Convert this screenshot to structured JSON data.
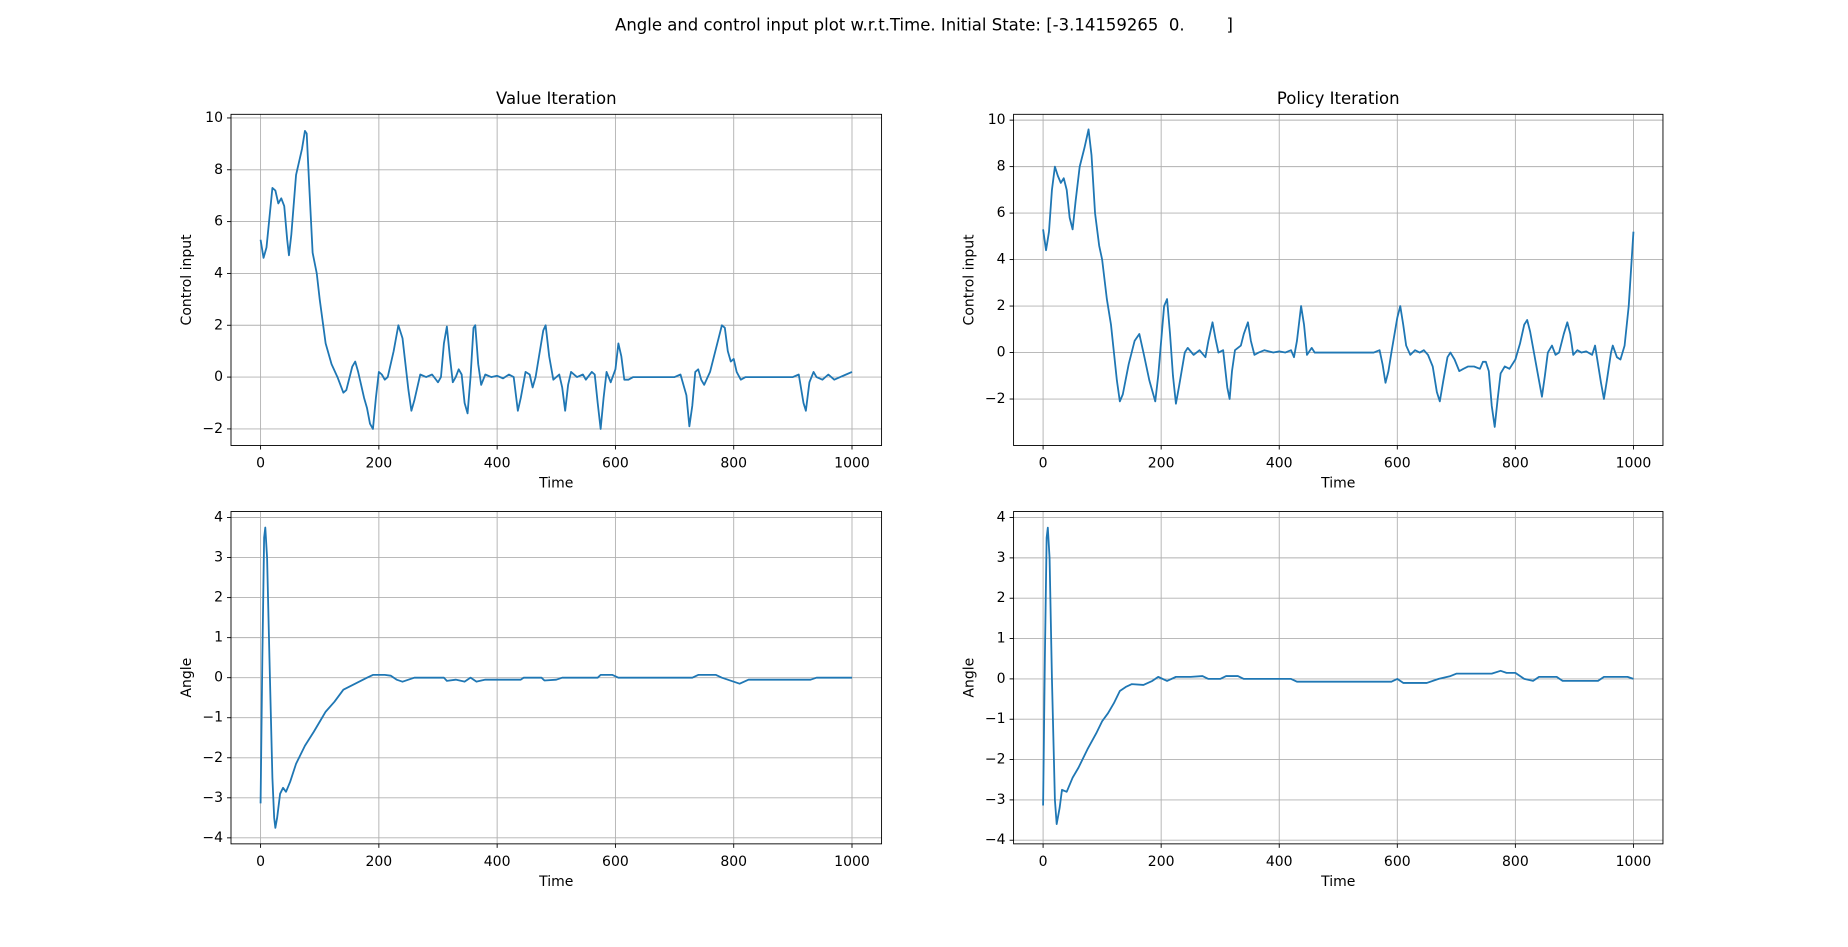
{
  "title": "Angle and control input plot w.r.t.Time. Initial State: [-3.14159265  0.        ]",
  "chart_data": [
    {
      "type": "line",
      "title": "Value Iteration",
      "x_label": "Time",
      "y_label": "Control input",
      "grid": true,
      "xlim": [
        -50,
        1050
      ],
      "ylim": [
        -2.64,
        10.14
      ],
      "xticks": [
        0,
        200,
        400,
        600,
        800,
        1000
      ],
      "yticks": [
        {
          "value": -2,
          "label": "−2"
        },
        0,
        2,
        4,
        6,
        8,
        10
      ],
      "x": [
        0,
        5,
        10,
        20,
        25,
        30,
        35,
        40,
        45,
        48,
        52,
        60,
        70,
        75,
        78,
        82,
        88,
        95,
        100,
        110,
        120,
        130,
        140,
        145,
        155,
        160,
        165,
        175,
        180,
        185,
        190,
        195,
        200,
        205,
        210,
        215,
        225,
        233,
        240,
        250,
        255,
        260,
        270,
        280,
        290,
        300,
        305,
        310,
        315,
        320,
        325,
        330,
        335,
        340,
        345,
        350,
        355,
        360,
        363,
        368,
        373,
        380,
        390,
        400,
        410,
        420,
        428,
        435,
        440,
        448,
        455,
        460,
        465,
        478,
        482,
        488,
        495,
        505,
        510,
        515,
        520,
        525,
        535,
        545,
        550,
        560,
        565,
        570,
        575,
        580,
        585,
        592,
        600,
        605,
        610,
        615,
        622,
        630,
        700,
        710,
        720,
        725,
        730,
        735,
        740,
        745,
        750,
        760,
        770,
        780,
        785,
        790,
        795,
        800,
        805,
        812,
        820,
        900,
        910,
        918,
        922,
        928,
        935,
        940,
        950,
        960,
        970,
        980,
        990,
        1000
      ],
      "series": [
        {
          "color": "#1f77b4",
          "values": [
            5.3,
            4.6,
            5.0,
            7.3,
            7.2,
            6.7,
            6.9,
            6.6,
            5.3,
            4.7,
            5.5,
            7.8,
            8.8,
            9.5,
            9.4,
            7.5,
            4.8,
            4.0,
            3.0,
            1.3,
            0.5,
            0.0,
            -0.6,
            -0.5,
            0.4,
            0.6,
            0.2,
            -0.8,
            -1.2,
            -1.8,
            -2.0,
            -0.8,
            0.2,
            0.1,
            -0.1,
            0.0,
            1.0,
            2.0,
            1.5,
            -0.5,
            -1.3,
            -0.9,
            0.1,
            0.0,
            0.1,
            -0.2,
            0.0,
            1.3,
            1.95,
            0.8,
            -0.2,
            0.0,
            0.3,
            0.1,
            -1.0,
            -1.4,
            0.0,
            1.9,
            2.0,
            0.5,
            -0.3,
            0.1,
            0.0,
            0.05,
            -0.05,
            0.1,
            0.0,
            -1.3,
            -0.8,
            0.2,
            0.1,
            -0.4,
            0.0,
            1.8,
            2.0,
            0.8,
            -0.1,
            0.1,
            -0.4,
            -1.3,
            -0.3,
            0.2,
            0.0,
            0.1,
            -0.1,
            0.2,
            0.1,
            -1.0,
            -2.0,
            -0.8,
            0.2,
            -0.2,
            0.3,
            1.3,
            0.8,
            -0.1,
            -0.1,
            0.0,
            0.0,
            0.1,
            -0.7,
            -1.9,
            -1.1,
            0.2,
            0.3,
            -0.1,
            -0.3,
            0.2,
            1.1,
            2.0,
            1.9,
            1.0,
            0.6,
            0.7,
            0.2,
            -0.1,
            0.0,
            0.0,
            0.1,
            -1.0,
            -1.3,
            -0.2,
            0.2,
            0.0,
            -0.1,
            0.1,
            -0.1,
            0.0,
            0.1,
            0.2
          ]
        }
      ]
    },
    {
      "type": "line",
      "title": "Policy Iteration",
      "x_label": "Time",
      "y_label": "Control input",
      "grid": true,
      "xlim": [
        -50,
        1050
      ],
      "ylim": [
        -4.0,
        10.25
      ],
      "xticks": [
        0,
        200,
        400,
        600,
        800,
        1000
      ],
      "yticks": [
        {
          "value": -2,
          "label": "−2"
        },
        0,
        2,
        4,
        6,
        8,
        10
      ],
      "x": [
        0,
        5,
        10,
        15,
        20,
        25,
        30,
        35,
        40,
        45,
        50,
        55,
        62,
        70,
        77,
        82,
        88,
        95,
        100,
        108,
        115,
        120,
        125,
        130,
        135,
        145,
        155,
        163,
        170,
        180,
        190,
        195,
        200,
        205,
        210,
        215,
        220,
        225,
        230,
        240,
        245,
        255,
        265,
        275,
        280,
        287,
        292,
        297,
        305,
        312,
        316,
        320,
        325,
        335,
        340,
        347,
        352,
        358,
        365,
        375,
        390,
        400,
        410,
        420,
        425,
        430,
        437,
        442,
        447,
        455,
        460,
        470,
        560,
        570,
        575,
        580,
        585,
        590,
        600,
        605,
        610,
        615,
        622,
        630,
        638,
        645,
        652,
        660,
        667,
        672,
        678,
        685,
        690,
        697,
        705,
        712,
        720,
        730,
        740,
        745,
        750,
        755,
        760,
        765,
        770,
        775,
        782,
        790,
        800,
        808,
        815,
        820,
        825,
        830,
        835,
        840,
        845,
        850,
        855,
        862,
        868,
        874,
        882,
        888,
        893,
        898,
        905,
        912,
        920,
        930,
        935,
        945,
        950,
        955,
        962,
        965,
        972,
        978,
        985,
        992,
        997,
        1000
      ],
      "series": [
        {
          "color": "#1f77b4",
          "values": [
            5.3,
            4.4,
            5.2,
            7.0,
            8.0,
            7.6,
            7.3,
            7.5,
            7.0,
            5.8,
            5.3,
            6.5,
            8.0,
            8.8,
            9.6,
            8.5,
            6.0,
            4.6,
            4.0,
            2.3,
            1.2,
            0.0,
            -1.2,
            -2.1,
            -1.8,
            -0.5,
            0.5,
            0.8,
            0.0,
            -1.2,
            -2.1,
            -1.0,
            0.5,
            2.0,
            2.3,
            0.8,
            -1.0,
            -2.2,
            -1.5,
            0.0,
            0.2,
            -0.1,
            0.1,
            -0.2,
            0.5,
            1.3,
            0.6,
            0.0,
            0.1,
            -1.5,
            -2.0,
            -0.8,
            0.1,
            0.3,
            0.8,
            1.3,
            0.5,
            -0.1,
            0.0,
            0.1,
            0.0,
            0.05,
            0.0,
            0.1,
            -0.2,
            0.5,
            2.0,
            1.2,
            -0.1,
            0.2,
            0.0,
            0.0,
            0.0,
            0.1,
            -0.5,
            -1.3,
            -0.8,
            0.0,
            1.5,
            2.0,
            1.2,
            0.3,
            -0.1,
            0.1,
            0.0,
            0.1,
            -0.1,
            -0.6,
            -1.7,
            -2.1,
            -1.2,
            -0.2,
            0.0,
            -0.3,
            -0.8,
            -0.7,
            -0.6,
            -0.6,
            -0.7,
            -0.4,
            -0.4,
            -0.8,
            -2.3,
            -3.2,
            -2.0,
            -0.9,
            -0.6,
            -0.7,
            -0.3,
            0.4,
            1.2,
            1.4,
            0.9,
            0.2,
            -0.5,
            -1.2,
            -1.9,
            -1.0,
            0.0,
            0.3,
            -0.1,
            0.0,
            0.8,
            1.3,
            0.8,
            -0.1,
            0.1,
            0.0,
            0.05,
            -0.1,
            0.3,
            -1.3,
            -2.0,
            -1.2,
            0.0,
            0.3,
            -0.2,
            -0.3,
            0.3,
            2.0,
            4.0,
            5.2
          ]
        }
      ]
    },
    {
      "type": "line",
      "x_label": "Time",
      "y_label": "Angle",
      "grid": true,
      "xlim": [
        -50,
        1050
      ],
      "ylim": [
        -4.15,
        4.15
      ],
      "xticks": [
        0,
        200,
        400,
        600,
        800,
        1000
      ],
      "yticks": [
        {
          "value": -4,
          "label": "−4"
        },
        {
          "value": -3,
          "label": "−3"
        },
        {
          "value": -2,
          "label": "−2"
        },
        {
          "value": -1,
          "label": "−1"
        },
        0,
        1,
        2,
        3,
        4
      ],
      "x": [
        0,
        3,
        6,
        8,
        11,
        15,
        20,
        23,
        25,
        28,
        33,
        38,
        43,
        50,
        60,
        75,
        90,
        100,
        110,
        125,
        140,
        160,
        180,
        190,
        210,
        220,
        230,
        240,
        250,
        260,
        300,
        310,
        315,
        330,
        345,
        355,
        365,
        380,
        440,
        445,
        475,
        480,
        500,
        510,
        570,
        575,
        595,
        605,
        730,
        740,
        770,
        780,
        800,
        810,
        825,
        930,
        940,
        1000
      ],
      "series": [
        {
          "color": "#1f77b4",
          "values": [
            -3.14,
            0.5,
            3.5,
            3.75,
            3.0,
            0.5,
            -2.5,
            -3.5,
            -3.75,
            -3.5,
            -2.9,
            -2.75,
            -2.85,
            -2.6,
            -2.15,
            -1.7,
            -1.35,
            -1.1,
            -0.85,
            -0.6,
            -0.3,
            -0.15,
            0.0,
            0.07,
            0.07,
            0.05,
            -0.05,
            -0.1,
            -0.05,
            0.0,
            0.0,
            0.0,
            -0.08,
            -0.05,
            -0.1,
            0.0,
            -0.1,
            -0.05,
            -0.05,
            0.0,
            0.0,
            -0.07,
            -0.05,
            0.0,
            0.0,
            0.07,
            0.07,
            0.0,
            0.0,
            0.07,
            0.07,
            0.0,
            -0.1,
            -0.15,
            -0.05,
            -0.05,
            0.0,
            0.0
          ]
        }
      ]
    },
    {
      "type": "line",
      "x_label": "Time",
      "y_label": "Angle",
      "grid": true,
      "xlim": [
        -50,
        1050
      ],
      "ylim": [
        -4.09,
        4.15
      ],
      "xticks": [
        0,
        200,
        400,
        600,
        800,
        1000
      ],
      "yticks": [
        {
          "value": -4,
          "label": "−4"
        },
        {
          "value": -3,
          "label": "−3"
        },
        {
          "value": -2,
          "label": "−2"
        },
        {
          "value": -1,
          "label": "−1"
        },
        0,
        1,
        2,
        3,
        4
      ],
      "x": [
        0,
        3,
        6,
        8,
        11,
        15,
        20,
        23,
        28,
        32,
        40,
        50,
        60,
        75,
        90,
        100,
        110,
        120,
        130,
        140,
        150,
        170,
        185,
        195,
        210,
        225,
        250,
        270,
        280,
        300,
        310,
        330,
        340,
        420,
        430,
        590,
        600,
        610,
        650,
        670,
        690,
        700,
        760,
        775,
        785,
        800,
        815,
        830,
        840,
        870,
        880,
        940,
        950,
        990,
        1000
      ],
      "series": [
        {
          "color": "#1f77b4",
          "values": [
            -3.14,
            0.5,
            3.5,
            3.75,
            3.0,
            0.0,
            -3.0,
            -3.6,
            -3.2,
            -2.75,
            -2.8,
            -2.45,
            -2.2,
            -1.75,
            -1.35,
            -1.05,
            -0.85,
            -0.6,
            -0.3,
            -0.2,
            -0.13,
            -0.15,
            -0.05,
            0.05,
            -0.05,
            0.05,
            0.05,
            0.07,
            0.0,
            0.0,
            0.07,
            0.07,
            0.0,
            0.0,
            -0.07,
            -0.07,
            0.0,
            -0.1,
            -0.1,
            0.0,
            0.07,
            0.13,
            0.13,
            0.2,
            0.15,
            0.15,
            0.0,
            -0.05,
            0.05,
            0.05,
            -0.05,
            -0.05,
            0.05,
            0.05,
            0.0
          ]
        }
      ]
    }
  ]
}
